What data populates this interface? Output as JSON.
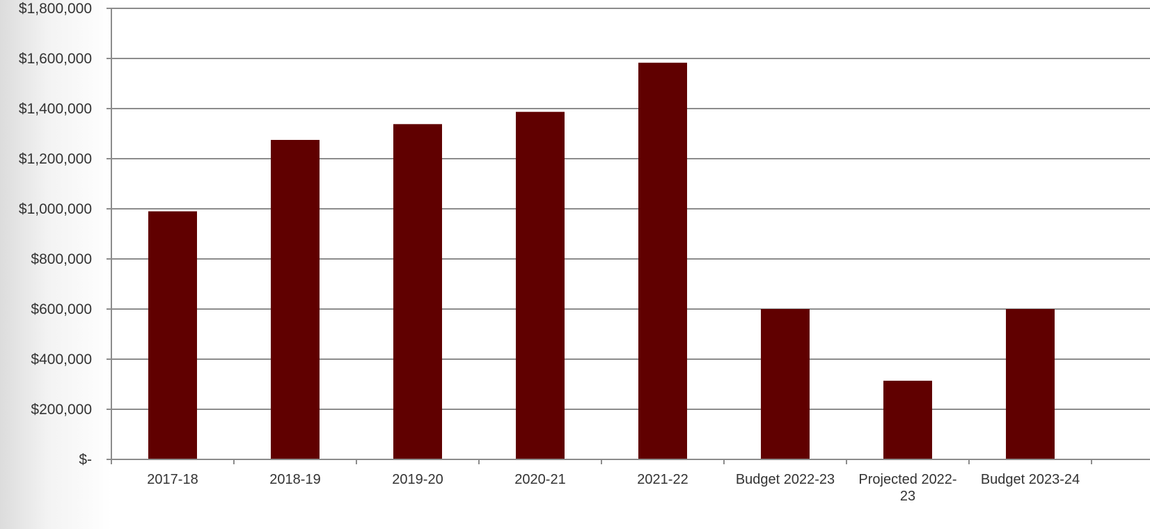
{
  "chart_data": {
    "type": "bar",
    "title": "",
    "xlabel": "",
    "ylabel": "",
    "categories": [
      "2017-18",
      "2018-19",
      "2019-20",
      "2020-21",
      "2021-22",
      "Budget 2022-23",
      "Projected 2022-23",
      "Budget 2023-24"
    ],
    "category_label_lines": [
      [
        "2017-18"
      ],
      [
        "2018-19"
      ],
      [
        "2019-20"
      ],
      [
        "2020-21"
      ],
      [
        "2021-22"
      ],
      [
        "Budget 2022-23"
      ],
      [
        "Projected 2022-",
        "23"
      ],
      [
        "Budget 2023-24"
      ]
    ],
    "values": [
      990000,
      1275000,
      1338000,
      1387000,
      1583000,
      600000,
      314000,
      600000
    ],
    "ylim": [
      0,
      1800000
    ],
    "yticks": [
      0,
      200000,
      400000,
      600000,
      800000,
      1000000,
      1200000,
      1400000,
      1600000,
      1800000
    ],
    "ytick_labels": [
      "$-",
      "$200,000",
      "$400,000",
      "$600,000",
      "$800,000",
      "$1,000,000",
      "$1,200,000",
      "$1,400,000",
      "$1,600,000",
      "$1,800,000"
    ],
    "grid": true,
    "legend": "none",
    "bar_color": "#600000",
    "grid_color": "#8c8c8c"
  }
}
